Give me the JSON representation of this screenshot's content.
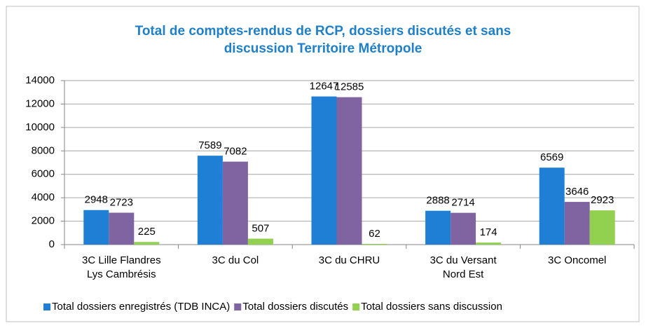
{
  "chart_data": {
    "type": "bar",
    "title": "Total de comptes-rendus de RCP, dossiers discutés et sans\ndiscussion Territoire Métropole",
    "categories": [
      "3C Lille Flandres\nLys Cambrésis",
      "3C du Col",
      "3C du CHRU",
      "3C du Versant\nNord Est",
      "3C Oncomel"
    ],
    "series": [
      {
        "name": "Total dossiers enregistrés (TDB INCA)",
        "color": "#1f7fd4",
        "values": [
          2948,
          7589,
          12647,
          2888,
          6569
        ]
      },
      {
        "name": "Total dossiers discutés",
        "color": "#8064a2",
        "values": [
          2723,
          7082,
          12585,
          2714,
          3646
        ]
      },
      {
        "name": "Total dossiers sans discussion",
        "color": "#92d050",
        "values": [
          225,
          507,
          62,
          174,
          2923
        ]
      }
    ],
    "ylim": [
      0,
      14000
    ],
    "yticks": [
      0,
      2000,
      4000,
      6000,
      8000,
      10000,
      12000,
      14000
    ],
    "grid": true,
    "legend": "bottom"
  }
}
